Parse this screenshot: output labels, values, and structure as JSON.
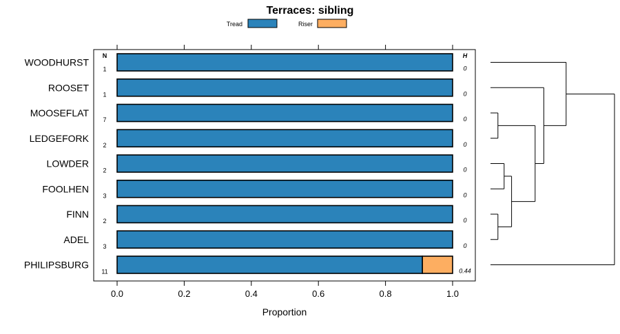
{
  "chart_data": {
    "type": "bar",
    "orientation": "horizontal",
    "stacked": true,
    "title": "Terraces: sibling",
    "xlabel": "Proportion",
    "ylabel": "",
    "xlim": [
      0,
      1
    ],
    "x_ticks": [
      0.0,
      0.2,
      0.4,
      0.6,
      0.8,
      1.0
    ],
    "x_tick_labels": [
      "0.0",
      "0.2",
      "0.4",
      "0.6",
      "0.8",
      "1.0"
    ],
    "n_header": "N",
    "h_header": "H",
    "legend_position": "top",
    "categories": [
      "WOODHURST",
      "ROOSET",
      "MOOSEFLAT",
      "LEDGEFORK",
      "LOWDER",
      "FOOLHEN",
      "FINN",
      "ADEL",
      "PHILIPSBURG"
    ],
    "n_values": [
      "1",
      "1",
      "7",
      "2",
      "2",
      "3",
      "2",
      "3",
      "11"
    ],
    "h_values": [
      "0",
      "0",
      "0",
      "0",
      "0",
      "0",
      "0",
      "0",
      "0.44"
    ],
    "series": [
      {
        "name": "Tread",
        "color": "#2B83BA",
        "values": [
          1,
          1,
          1,
          1,
          1,
          1,
          1,
          1,
          0.91
        ]
      },
      {
        "name": "Riser",
        "color": "#FDAE61",
        "values": [
          0,
          0,
          0,
          0,
          0,
          0,
          0,
          0,
          0.09
        ]
      }
    ],
    "dendrogram": {
      "note": "merge order of the categories (indices into categories)",
      "merges": [
        {
          "a": 2,
          "b": 3,
          "height": 0.06
        },
        {
          "a": 4,
          "b": 5,
          "height": 0.11
        },
        {
          "a": 6,
          "b": 7,
          "height": 0.06
        },
        {
          "a": "m1",
          "b": "m2",
          "height": 0.17
        },
        {
          "a": "m0",
          "b": "m3",
          "height": 0.36
        },
        {
          "a": 1,
          "b": "m4",
          "height": 0.43
        },
        {
          "a": 0,
          "b": "m5",
          "height": 0.61
        },
        {
          "a": "m6",
          "b": 8,
          "height": 1.0
        }
      ]
    }
  }
}
